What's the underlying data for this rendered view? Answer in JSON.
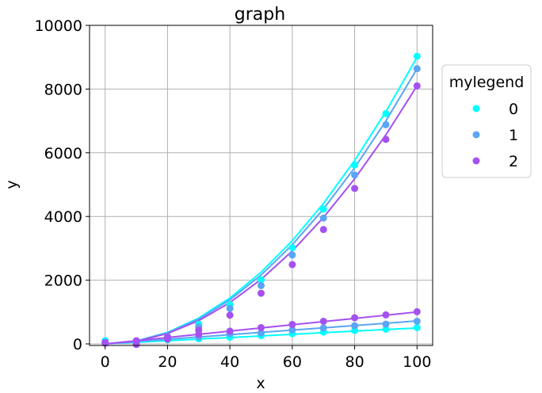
{
  "chart_data": {
    "type": "scatter",
    "title": "graph",
    "xlabel": "x",
    "ylabel": "y",
    "xlim": [
      -5,
      105
    ],
    "ylim": [
      -50,
      10000
    ],
    "xticks": [
      0,
      20,
      40,
      60,
      80,
      100
    ],
    "yticks": [
      0,
      2000,
      4000,
      6000,
      8000,
      10000
    ],
    "grid": true,
    "legend": {
      "title": "mylegend",
      "placement": "right-outside-top"
    },
    "x": [
      0,
      10,
      20,
      30,
      40,
      50,
      60,
      70,
      80,
      90,
      100
    ],
    "series": [
      {
        "name": "0",
        "color": "#00ffff",
        "points_upper": [
          100,
          60,
          200,
          620,
          1230,
          2010,
          3020,
          4230,
          5620,
          7230,
          9030
        ],
        "points_lower": [
          40,
          90,
          130,
          160,
          210,
          260,
          320,
          370,
          420,
          460,
          510
        ],
        "fit_upper": [
          0,
          90,
          360,
          810,
          1440,
          2250,
          3240,
          4410,
          5760,
          7290,
          9000
        ],
        "fit_lower": [
          0,
          50,
          100,
          150,
          200,
          250,
          300,
          350,
          400,
          450,
          500
        ]
      },
      {
        "name": "1",
        "color": "#5aa5f5",
        "points_upper": [
          50,
          70,
          230,
          530,
          1110,
          1830,
          2790,
          3950,
          5300,
          6880,
          8640
        ],
        "points_lower": [
          40,
          40,
          190,
          220,
          320,
          340,
          440,
          500,
          570,
          620,
          710
        ],
        "fit_upper": [
          0,
          86,
          346,
          778,
          1382,
          2160,
          3110,
          4234,
          5530,
          6998,
          8640
        ],
        "fit_lower": [
          0,
          72,
          144,
          216,
          288,
          360,
          432,
          504,
          576,
          648,
          720
        ]
      },
      {
        "name": "2",
        "color": "#a551f0",
        "points_upper": [
          40,
          -20,
          150,
          430,
          900,
          1590,
          2490,
          3590,
          4880,
          6420,
          8100
        ],
        "points_lower": [
          20,
          100,
          210,
          300,
          400,
          510,
          610,
          710,
          820,
          910,
          1010
        ],
        "fit_upper": [
          0,
          81,
          324,
          729,
          1296,
          2025,
          2916,
          3969,
          5184,
          6561,
          8100
        ],
        "fit_lower": [
          0,
          100,
          200,
          300,
          400,
          500,
          600,
          700,
          800,
          900,
          1000
        ]
      }
    ]
  }
}
